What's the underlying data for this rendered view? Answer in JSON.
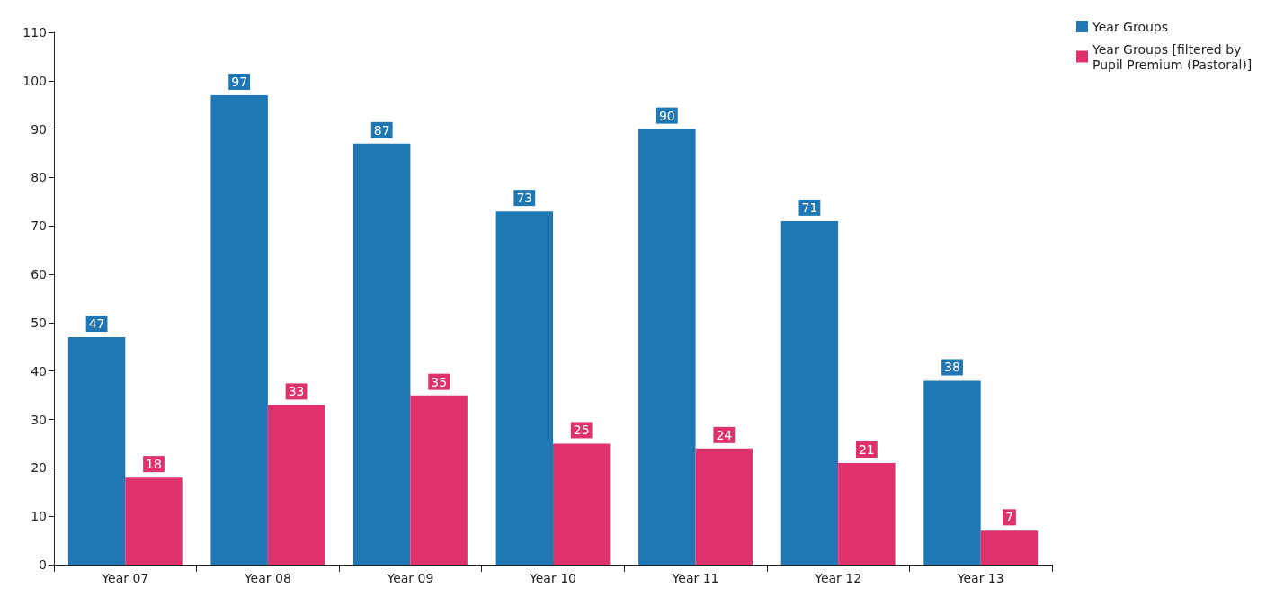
{
  "chart_data": {
    "type": "bar",
    "categories": [
      "Year 07",
      "Year 08",
      "Year 09",
      "Year 10",
      "Year 11",
      "Year 12",
      "Year 13"
    ],
    "series": [
      {
        "name": "Year Groups",
        "color": "#1f78b4",
        "values": [
          47,
          97,
          87,
          73,
          90,
          71,
          38
        ]
      },
      {
        "name": "Year Groups [filtered by Pupil Premium (Pastoral)]",
        "color": "#e0326a",
        "values": [
          18,
          33,
          35,
          25,
          24,
          21,
          7
        ]
      }
    ],
    "ylim": [
      0,
      110
    ],
    "yticks": [
      0,
      10,
      20,
      30,
      40,
      50,
      60,
      70,
      80,
      90,
      100,
      110
    ],
    "grid": false,
    "legend": "top right",
    "data_labels": true
  }
}
